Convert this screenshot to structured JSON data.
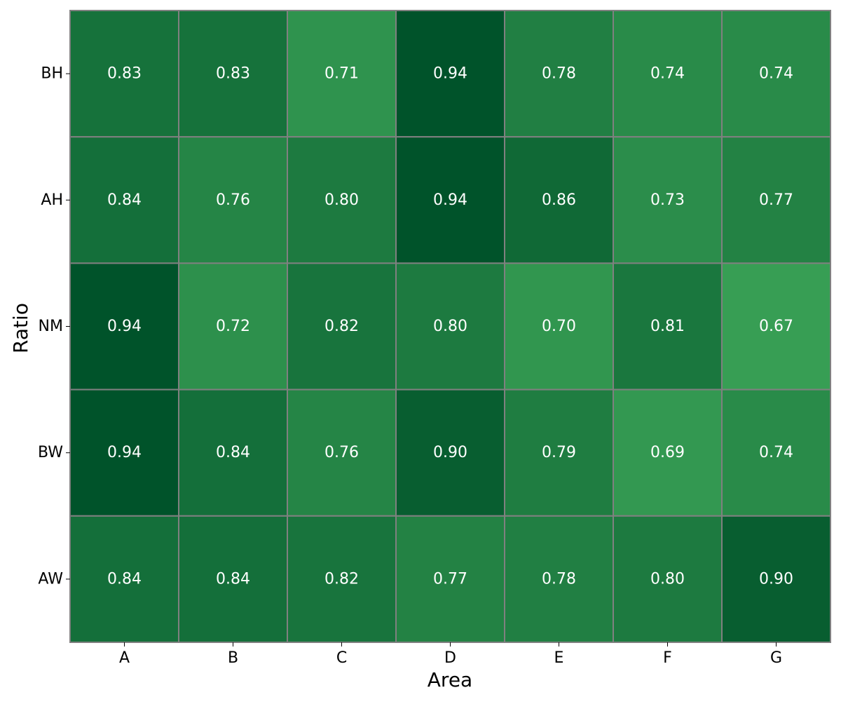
{
  "chart_data": {
    "type": "heatmap",
    "title": "",
    "xlabel": "Area",
    "ylabel": "Ratio",
    "x_categories": [
      "A",
      "B",
      "C",
      "D",
      "E",
      "F",
      "G"
    ],
    "y_categories": [
      "BH",
      "AH",
      "NM",
      "BW",
      "AW"
    ],
    "values": [
      [
        0.83,
        0.83,
        0.71,
        0.94,
        0.78,
        0.74,
        0.74
      ],
      [
        0.84,
        0.76,
        0.8,
        0.94,
        0.86,
        0.73,
        0.77
      ],
      [
        0.94,
        0.72,
        0.82,
        0.8,
        0.7,
        0.81,
        0.67
      ],
      [
        0.94,
        0.84,
        0.76,
        0.9,
        0.79,
        0.69,
        0.74
      ],
      [
        0.84,
        0.84,
        0.82,
        0.77,
        0.78,
        0.8,
        0.9
      ]
    ],
    "value_format": "0.00",
    "colormap": "Greens",
    "color_range": [
      0.67,
      0.94
    ],
    "colors": {
      "low": "#379e54",
      "high": "#00532a",
      "cell_border": "#808080",
      "cell_text": "#ffffff",
      "axis_text": "#000000"
    },
    "grid": true,
    "legend": "none"
  }
}
